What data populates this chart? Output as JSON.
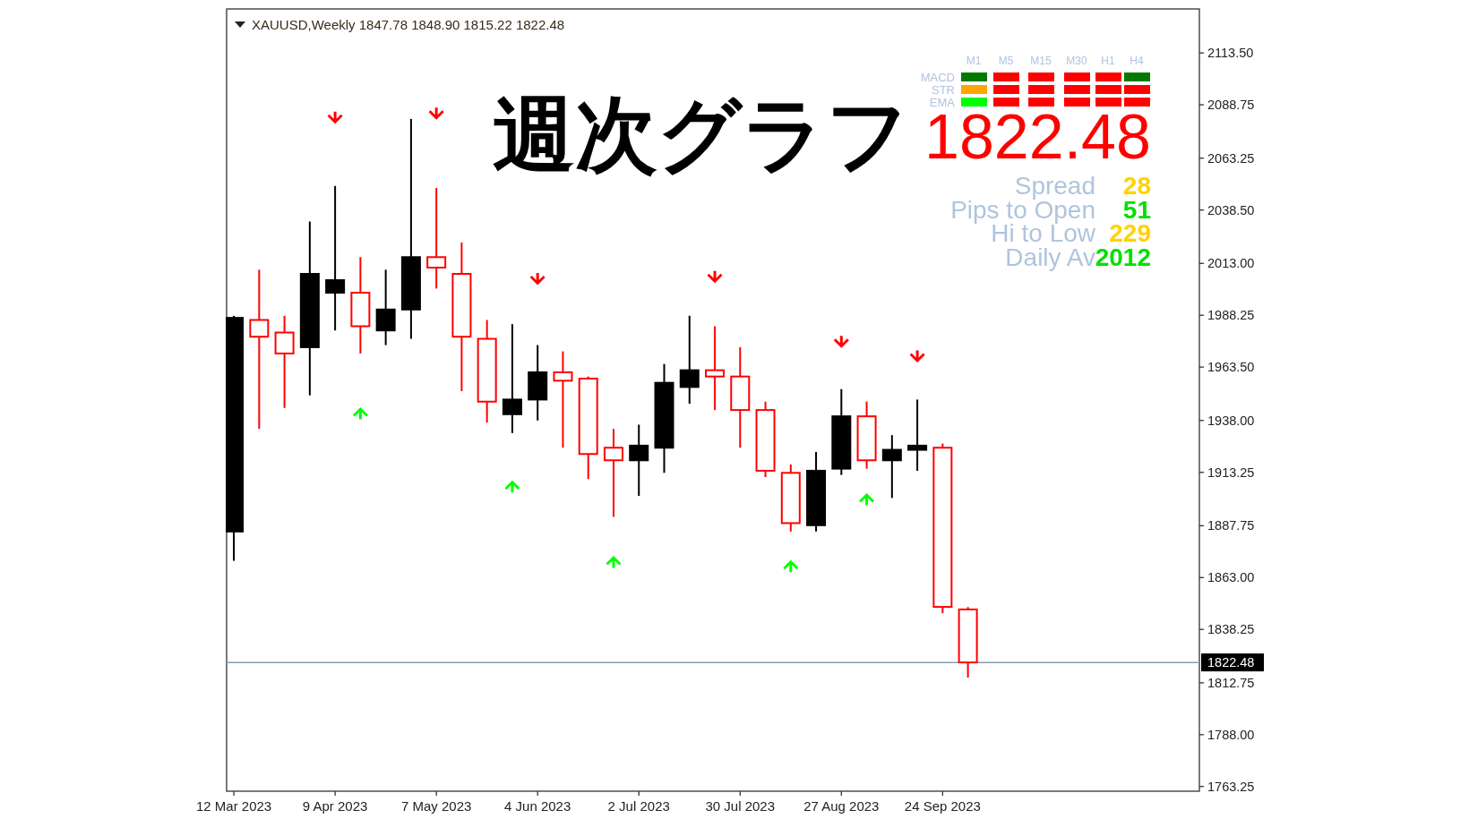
{
  "chart_data": {
    "type": "candlestick",
    "title": "週次グラフ",
    "subtitle": "XAUUSD,Weekly  1847.78 1848.90 1815.22 1822.48",
    "x": [
      "2023-03-12",
      "2023-03-19",
      "2023-03-26",
      "2023-04-02",
      "2023-04-09",
      "2023-04-16",
      "2023-04-23",
      "2023-04-30",
      "2023-05-07",
      "2023-05-14",
      "2023-05-21",
      "2023-05-28",
      "2023-06-04",
      "2023-06-11",
      "2023-06-18",
      "2023-06-25",
      "2023-07-02",
      "2023-07-09",
      "2023-07-16",
      "2023-07-23",
      "2023-07-30",
      "2023-08-06",
      "2023-08-13",
      "2023-08-20",
      "2023-08-27",
      "2023-09-03",
      "2023-09-10",
      "2023-09-17",
      "2023-09-24",
      "2023-10-01"
    ],
    "ohlc": [
      [
        1885,
        1988,
        1871,
        1987
      ],
      [
        1986,
        2010,
        1934,
        1978
      ],
      [
        1980,
        1988,
        1944,
        1970
      ],
      [
        1973,
        2033,
        1950,
        2008
      ],
      [
        1999,
        2050,
        1981,
        2005
      ],
      [
        1999,
        2016,
        1970,
        1983
      ],
      [
        1981,
        2010,
        1974,
        1991
      ],
      [
        1991,
        2082,
        1977,
        2016
      ],
      [
        2016,
        2049,
        2001,
        2011
      ],
      [
        2008,
        2023,
        1952,
        1978
      ],
      [
        1977,
        1986,
        1937,
        1947
      ],
      [
        1941,
        1984,
        1932,
        1948
      ],
      [
        1948,
        1974,
        1938,
        1961
      ],
      [
        1961,
        1971,
        1925,
        1957
      ],
      [
        1958,
        1959,
        1910,
        1922
      ],
      [
        1925,
        1934,
        1892,
        1919
      ],
      [
        1919,
        1936,
        1902,
        1926
      ],
      [
        1925,
        1965,
        1913,
        1956
      ],
      [
        1954,
        1988,
        1946,
        1962
      ],
      [
        1962,
        1983,
        1943,
        1959
      ],
      [
        1959,
        1973,
        1925,
        1943
      ],
      [
        1943,
        1947,
        1911,
        1914
      ],
      [
        1913,
        1917,
        1885,
        1889
      ],
      [
        1888,
        1923,
        1885,
        1914
      ],
      [
        1915,
        1953,
        1912,
        1940
      ],
      [
        1940,
        1947,
        1915,
        1919
      ],
      [
        1919,
        1931,
        1901,
        1924
      ],
      [
        1924,
        1948,
        1914,
        1926
      ],
      [
        1925,
        1927,
        1846,
        1849
      ],
      [
        1847.78,
        1848.9,
        1815.22,
        1822.48
      ]
    ],
    "colors": [
      "#000000",
      "#ff0000",
      "#ff0000",
      "#000000",
      "#000000",
      "#ff0000",
      "#000000",
      "#000000",
      "#ff0000",
      "#ff0000",
      "#ff0000",
      "#000000",
      "#000000",
      "#ff0000",
      "#ff0000",
      "#ff0000",
      "#000000",
      "#000000",
      "#000000",
      "#ff0000",
      "#ff0000",
      "#ff0000",
      "#ff0000",
      "#000000",
      "#000000",
      "#ff0000",
      "#000000",
      "#000000",
      "#ff0000",
      "#ff0000"
    ],
    "series": [
      {
        "type": "scatter",
        "color": "#ff0000",
        "x": [
          "2023-04-09",
          "2023-05-07",
          "2023-06-04",
          "2023-07-23",
          "2023-08-27",
          "2023-09-17"
        ],
        "values": [
          2082,
          2084,
          2005,
          2006,
          1975,
          1968
        ]
      },
      {
        "type": "scatter",
        "color": "#00ff00",
        "x": [
          "2023-04-16",
          "2023-05-28",
          "2023-06-25",
          "2023-08-13",
          "2023-09-03"
        ],
        "values": [
          1942,
          1907,
          1871,
          1869,
          1901
        ]
      }
    ],
    "xlim": [
      "2023-03-10",
      "2023-12-04"
    ],
    "ylim": [
      1761,
      2134.5
    ],
    "xticks": [
      {
        "value": "2023-03-12",
        "label": "12 Mar 2023"
      },
      {
        "value": "2023-04-09",
        "label": "9 Apr 2023"
      },
      {
        "value": "2023-05-07",
        "label": "7 May 2023"
      },
      {
        "value": "2023-06-04",
        "label": "4 Jun 2023"
      },
      {
        "value": "2023-07-02",
        "label": "2 Jul 2023"
      },
      {
        "value": "2023-07-30",
        "label": "30 Jul 2023"
      },
      {
        "value": "2023-08-27",
        "label": "27 Aug 2023"
      },
      {
        "value": "2023-09-24",
        "label": "24 Sep 2023"
      }
    ],
    "yticks": [
      {
        "value": 2113.5,
        "label": "2113.50"
      },
      2088.75,
      2063.25,
      {
        "value": 2038.5,
        "label": "2038.50"
      },
      {
        "value": 2013,
        "label": "2013.00"
      },
      1988.25,
      {
        "value": 1963.5,
        "label": "1963.50"
      },
      {
        "value": 1938,
        "label": "1938.00"
      },
      1913.25,
      1887.75,
      {
        "value": 1863,
        "label": "1863.00"
      },
      1838.25,
      1812.75,
      {
        "value": 1788,
        "label": "1788.00"
      },
      1763.25
    ],
    "ref_lines": [
      {
        "axis": "y",
        "value": 1822.48,
        "label": "1822.48",
        "color": "#8a9bb0"
      }
    ],
    "annotations": [
      "M1",
      "M5",
      "M15",
      "M30",
      "H1",
      "H4",
      "MACD",
      "STR",
      "EMA",
      "1822.48",
      "Spread",
      "28",
      "Pips to Open",
      "51",
      "Hi to Low",
      "229",
      "Daily Av",
      "2012"
    ]
  }
}
